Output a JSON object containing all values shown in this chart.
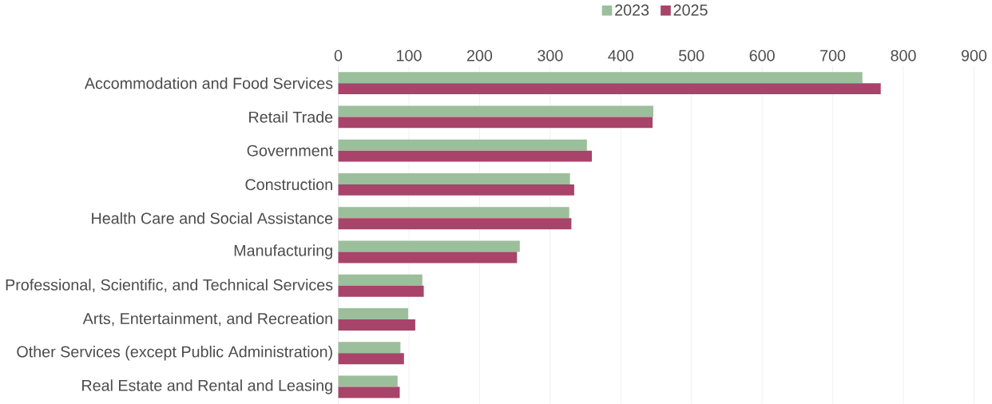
{
  "chart_data": {
    "type": "bar",
    "orientation": "horizontal",
    "categories": [
      "Accommodation and Food Services",
      "Retail Trade",
      "Government",
      "Construction",
      "Health Care and Social Assistance",
      "Manufacturing",
      "Professional, Scientific, and Technical Services",
      "Arts, Entertainment, and Recreation",
      "Other Services (except Public Administration)",
      "Real Estate and Rental and Leasing"
    ],
    "series": [
      {
        "name": "2023",
        "color": "#9bbf9b",
        "values": [
          742,
          446,
          352,
          328,
          327,
          257,
          119,
          99,
          88,
          84
        ]
      },
      {
        "name": "2025",
        "color": "#a8436a",
        "values": [
          768,
          445,
          359,
          334,
          330,
          253,
          121,
          109,
          93,
          87
        ]
      }
    ],
    "xlim": [
      0,
      900
    ],
    "xticks": [
      0,
      100,
      200,
      300,
      400,
      500,
      600,
      700,
      800,
      900
    ],
    "grid": "x",
    "legend": "top"
  }
}
